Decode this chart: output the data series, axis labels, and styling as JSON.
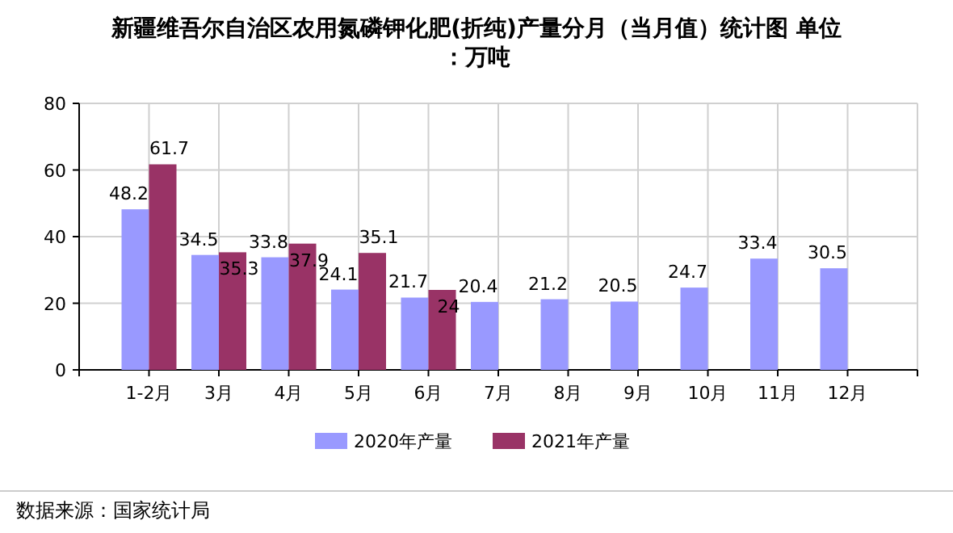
{
  "chart_data": {
    "type": "bar",
    "title": "新疆维吾尔自治区农用氮磷钾化肥(折纯)产量分月（当月值）统计图 单位：万吨",
    "categories": [
      "1-2月",
      "3月",
      "4月",
      "5月",
      "6月",
      "7月",
      "8月",
      "9月",
      "10月",
      "11月",
      "12月"
    ],
    "series": [
      {
        "name": "2020年产量",
        "color": "#9999ff",
        "values": [
          48.2,
          34.5,
          33.8,
          24.1,
          21.7,
          20.4,
          21.2,
          20.5,
          24.7,
          33.4,
          30.5
        ]
      },
      {
        "name": "2021年产量",
        "color": "#993366",
        "values": [
          61.7,
          35.3,
          37.9,
          35.1,
          24,
          null,
          null,
          null,
          null,
          null,
          null
        ]
      }
    ],
    "ylim": [
      0,
      80
    ],
    "yticks": [
      0,
      20,
      40,
      60,
      80
    ],
    "grid": true,
    "data_labels": true,
    "legend": "bottom",
    "annotations": [
      "数据来源：国家统计局"
    ]
  }
}
